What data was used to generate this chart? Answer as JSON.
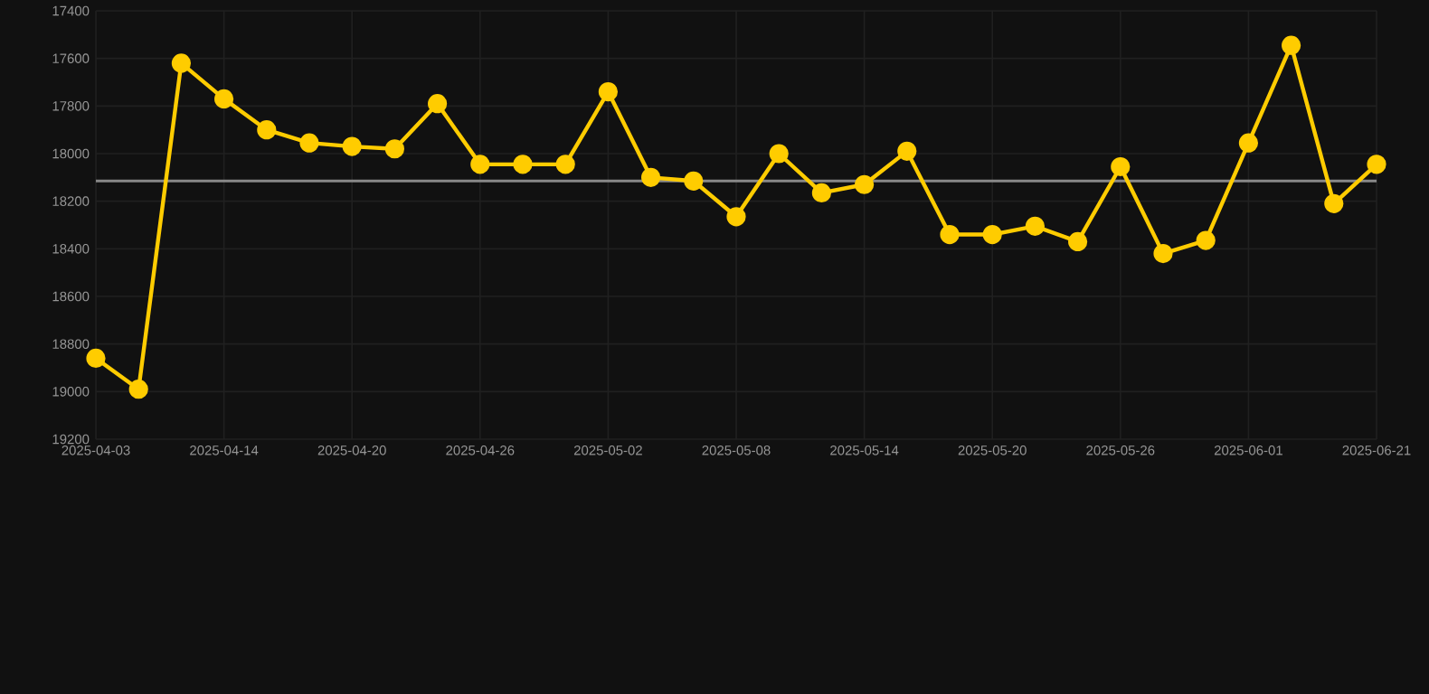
{
  "chart_data": {
    "type": "line",
    "categories": [
      "2025-04-03",
      null,
      null,
      "2025-04-14",
      null,
      null,
      "2025-04-20",
      null,
      null,
      "2025-04-26",
      null,
      null,
      "2025-05-02",
      null,
      null,
      "2025-05-08",
      null,
      null,
      "2025-05-14",
      null,
      null,
      "2025-05-20",
      null,
      null,
      "2025-05-26",
      null,
      null,
      "2025-06-01",
      null,
      null,
      "2025-06-21"
    ],
    "series": [
      {
        "color": "#ffcc00",
        "values": [
          18860,
          18990,
          17620,
          17770,
          17900,
          17955,
          17970,
          17980,
          17790,
          18045,
          18045,
          18045,
          17740,
          18100,
          18115,
          18265,
          18000,
          18165,
          18130,
          17990,
          18340,
          18340,
          18305,
          18370,
          18055,
          18420,
          18365,
          17955,
          17545,
          18210,
          18045
        ]
      }
    ],
    "ylim": [
      19200,
      17400
    ],
    "yticks": [
      17400,
      17600,
      17800,
      18000,
      18200,
      18400,
      18600,
      18800,
      19000,
      19200
    ],
    "ref_lines": [
      {
        "axis": "y",
        "value": 18115,
        "color": "#888888"
      }
    ],
    "grid": true,
    "marker": "circle",
    "line_style": "solid"
  }
}
